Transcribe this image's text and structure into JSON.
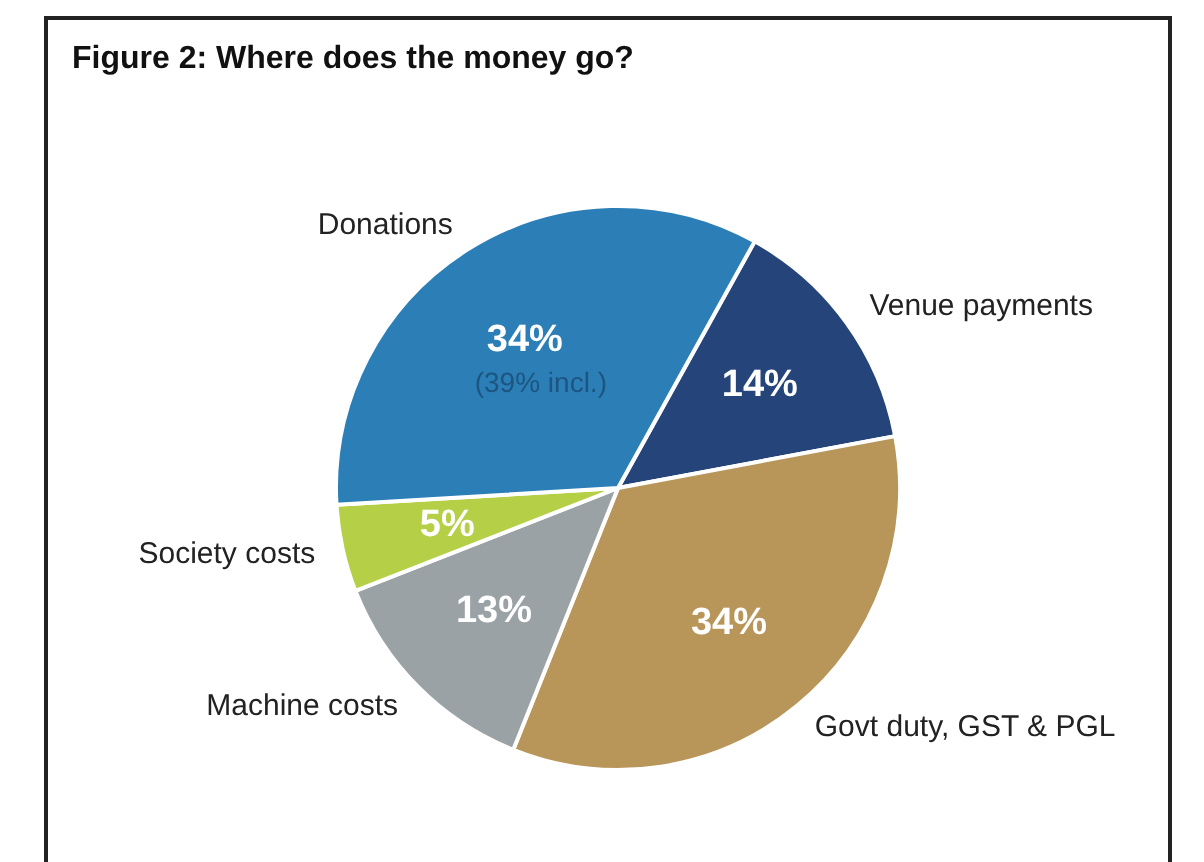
{
  "chart_data": {
    "type": "pie",
    "title": "Figure 2: Where does the money go?",
    "categories": [
      "Venue payments",
      "Govt duty, GST & PGL",
      "Machine costs",
      "Society costs",
      "Donations"
    ],
    "values": [
      14,
      34,
      13,
      5,
      34
    ],
    "colors": [
      "#25457a",
      "#b8965a",
      "#9aa2a6",
      "#b5d046",
      "#2b7fb6"
    ],
    "value_labels": [
      "14%",
      "34%",
      "13%",
      "5%",
      "34%"
    ],
    "annotations": [
      {
        "text": "(39% incl.)",
        "x": "Donations"
      }
    ],
    "legend": false
  }
}
